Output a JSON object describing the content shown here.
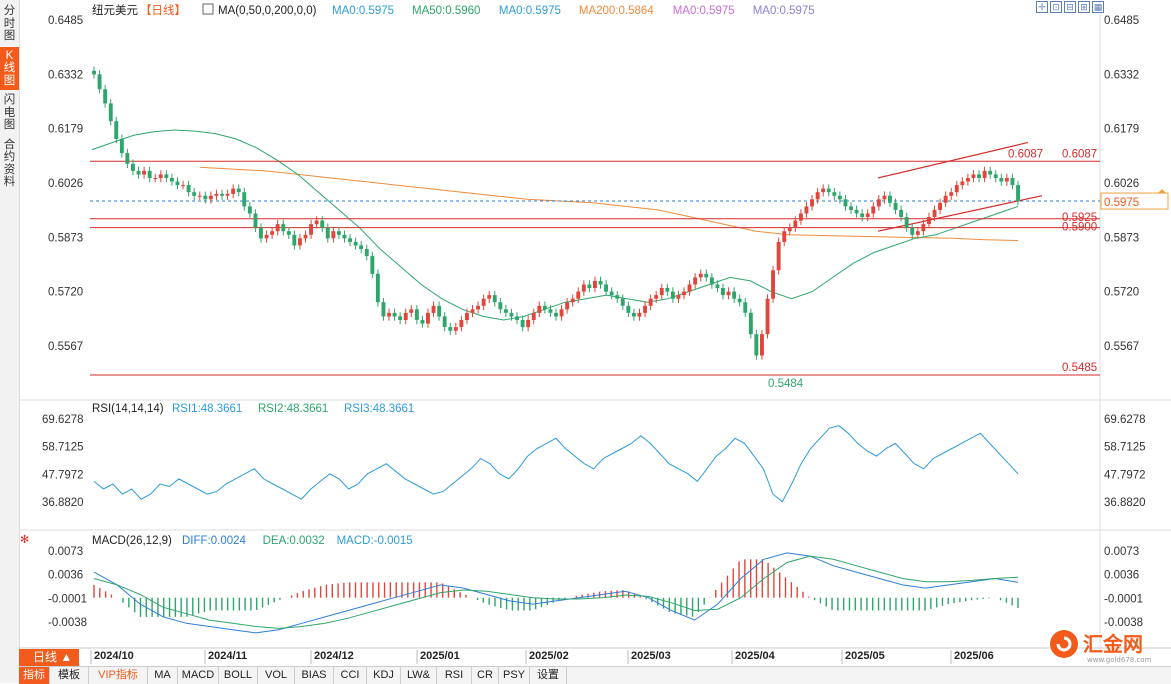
{
  "nav": {
    "items": [
      {
        "label": "分\n时\n图",
        "active": false
      },
      {
        "label": "K\n线\n图",
        "active": true
      },
      {
        "label": "闪\n电\n图",
        "active": false
      },
      {
        "label": "合\n约\n资\n料",
        "active": false
      }
    ]
  },
  "header": {
    "symbol": "纽元美元",
    "period_tag": "【日线】",
    "ma_params": "MA(0,50,0,200,0,0)",
    "ma_values": [
      {
        "label": "MA0:0.5975",
        "color": "#2e9cd9"
      },
      {
        "label": "MA50:0.5960",
        "color": "#2ea66b"
      },
      {
        "label": "MA0:0.5975",
        "color": "#2e9cd9"
      },
      {
        "label": "MA200:0.5864",
        "color": "#ef8c3c"
      },
      {
        "label": "MA0:0.5975",
        "color": "#c86fd6"
      },
      {
        "label": "MA0:0.5975",
        "color": "#8f7fd6"
      }
    ]
  },
  "price_panel": {
    "ticks": [
      "0.6485",
      "0.6332",
      "0.6179",
      "0.6026",
      "0.5873",
      "0.5720",
      "0.5567"
    ],
    "range": [
      0.5485,
      0.6485
    ],
    "current_price": "0.5975",
    "levels": [
      {
        "label": "0.6087",
        "value": 0.6087
      },
      {
        "label": "0.5925",
        "value": 0.5925
      },
      {
        "label": "0.5900",
        "value": 0.59
      },
      {
        "label": "0.5485",
        "value": 0.5485
      }
    ],
    "high_annotation": "0.6087",
    "low_annotation": "0.5484"
  },
  "rsi": {
    "title": "RSI(14,14,14)",
    "values": [
      {
        "label": "RSI1:48.3661",
        "color": "#2e9cd9"
      },
      {
        "label": "RSI2:48.3661",
        "color": "#2ea66b"
      },
      {
        "label": "RSI3:48.3661",
        "color": "#2e9cd9"
      }
    ],
    "ticks": [
      "69.6278",
      "58.7125",
      "47.7972",
      "36.8820"
    ]
  },
  "macd": {
    "title": "MACD(26,12,9)",
    "values": [
      {
        "label": "DIFF:0.0024",
        "color": "#2e7fd6"
      },
      {
        "label": "DEA:0.0032",
        "color": "#2ea66b"
      },
      {
        "label": "MACD:-0.0015",
        "color": "#2e9cd9"
      }
    ],
    "ticks": [
      "0.0073",
      "0.0036",
      "-0.0001",
      "-0.0038"
    ]
  },
  "x_axis": {
    "labels": [
      "2024/10",
      "2024/11",
      "2024/12",
      "2025/01",
      "2025/02",
      "2025/03",
      "2025/04",
      "2025/05",
      "2025/06"
    ]
  },
  "period_button": "日线 ▲",
  "bottom_tabs": [
    {
      "label": "指标",
      "style": "active"
    },
    {
      "label": "模板",
      "style": ""
    },
    {
      "label": "VIP指标",
      "style": "vip"
    },
    {
      "label": "MA",
      "style": ""
    },
    {
      "label": "MACD",
      "style": ""
    },
    {
      "label": "BOLL",
      "style": ""
    },
    {
      "label": "VOL",
      "style": ""
    },
    {
      "label": "BIAS",
      "style": ""
    },
    {
      "label": "CCI",
      "style": ""
    },
    {
      "label": "KDJ",
      "style": ""
    },
    {
      "label": "LW&",
      "style": ""
    },
    {
      "label": "RSI",
      "style": ""
    },
    {
      "label": "CR",
      "style": ""
    },
    {
      "label": "PSY",
      "style": ""
    },
    {
      "label": "设置",
      "style": ""
    }
  ],
  "watermark": {
    "brand": "汇金网",
    "url": "www.gold678.com"
  },
  "chart_data": {
    "type": "candlestick",
    "candles_approx_close": [
      0.6332,
      0.629,
      0.625,
      0.62,
      0.615,
      0.611,
      0.608,
      0.606,
      0.605,
      0.606,
      0.604,
      0.604,
      0.605,
      0.604,
      0.603,
      0.602,
      0.602,
      0.6,
      0.599,
      0.599,
      0.598,
      0.599,
      0.5995,
      0.599,
      0.5995,
      0.601,
      0.6,
      0.596,
      0.594,
      0.59,
      0.587,
      0.588,
      0.589,
      0.591,
      0.589,
      0.588,
      0.585,
      0.587,
      0.588,
      0.591,
      0.592,
      0.59,
      0.587,
      0.589,
      0.588,
      0.587,
      0.586,
      0.585,
      0.584,
      0.582,
      0.577,
      0.569,
      0.565,
      0.566,
      0.565,
      0.564,
      0.566,
      0.567,
      0.564,
      0.563,
      0.566,
      0.568,
      0.565,
      0.562,
      0.561,
      0.562,
      0.564,
      0.566,
      0.567,
      0.568,
      0.57,
      0.571,
      0.569,
      0.567,
      0.566,
      0.565,
      0.564,
      0.562,
      0.564,
      0.566,
      0.568,
      0.567,
      0.566,
      0.565,
      0.567,
      0.569,
      0.57,
      0.572,
      0.574,
      0.573,
      0.575,
      0.574,
      0.572,
      0.571,
      0.57,
      0.568,
      0.566,
      0.565,
      0.566,
      0.568,
      0.57,
      0.571,
      0.573,
      0.572,
      0.57,
      0.571,
      0.572,
      0.574,
      0.576,
      0.577,
      0.576,
      0.574,
      0.573,
      0.571,
      0.572,
      0.57,
      0.569,
      0.566,
      0.56,
      0.554,
      0.56,
      0.57,
      0.578,
      0.586,
      0.589,
      0.59,
      0.592,
      0.594,
      0.596,
      0.598,
      0.6,
      0.601,
      0.6,
      0.599,
      0.598,
      0.596,
      0.595,
      0.594,
      0.593,
      0.594,
      0.596,
      0.598,
      0.599,
      0.597,
      0.595,
      0.593,
      0.59,
      0.588,
      0.589,
      0.591,
      0.593,
      0.595,
      0.597,
      0.599,
      0.6,
      0.602,
      0.603,
      0.604,
      0.605,
      0.604,
      0.606,
      0.605,
      0.604,
      0.603,
      0.604,
      0.602,
      0.5975
    ],
    "ma50_approx": [
      0.612,
      0.614,
      0.616,
      0.617,
      0.6175,
      0.6172,
      0.6165,
      0.615,
      0.6125,
      0.609,
      0.605,
      0.6,
      0.595,
      0.59,
      0.584,
      0.579,
      0.574,
      0.57,
      0.567,
      0.565,
      0.564,
      0.565,
      0.567,
      0.569,
      0.57,
      0.571,
      0.57,
      0.569,
      0.57,
      0.572,
      0.574,
      0.576,
      0.575,
      0.572,
      0.57,
      0.572,
      0.576,
      0.58,
      0.583,
      0.585,
      0.587,
      0.588,
      0.59,
      0.592,
      0.594,
      0.596
    ],
    "ma200_approx": [
      0.607,
      0.6065,
      0.606,
      0.605,
      0.604,
      0.603,
      0.602,
      0.601,
      0.6,
      0.599,
      0.598,
      0.5975,
      0.597,
      0.596,
      0.595,
      0.593,
      0.591,
      0.589,
      0.588,
      0.5878,
      0.5876,
      0.5874,
      0.5872,
      0.587,
      0.5866,
      0.5864
    ],
    "horizontal_levels": [
      0.6087,
      0.5925,
      0.59,
      0.5485
    ],
    "channel": {
      "upper": [
        [
          0.604,
          0.614
        ]
      ],
      "lower": [
        [
          0.589,
          0.599
        ]
      ]
    },
    "rsi_approx": [
      45,
      42,
      44,
      40,
      42,
      38,
      40,
      44,
      43,
      46,
      44,
      42,
      40,
      41,
      44,
      46,
      48,
      50,
      46,
      44,
      42,
      40,
      38,
      42,
      45,
      48,
      46,
      42,
      44,
      48,
      50,
      52,
      49,
      46,
      44,
      42,
      40,
      41,
      44,
      47,
      50,
      54,
      52,
      48,
      46,
      50,
      55,
      58,
      60,
      62,
      58,
      55,
      52,
      50,
      54,
      56,
      58,
      60,
      63,
      60,
      56,
      52,
      50,
      48,
      45,
      50,
      55,
      58,
      62,
      60,
      55,
      50,
      40,
      37,
      44,
      52,
      58,
      62,
      66,
      67,
      64,
      60,
      57,
      55,
      58,
      60,
      56,
      52,
      50,
      54,
      56,
      58,
      60,
      62,
      64,
      60,
      56,
      52,
      48
    ],
    "macd": {
      "diff_approx": [
        0.004,
        0.002,
        -0.001,
        -0.003,
        -0.004,
        -0.0045,
        -0.005,
        -0.0055,
        -0.005,
        -0.004,
        -0.003,
        -0.002,
        -0.001,
        0.0,
        0.001,
        0.002,
        0.0015,
        0.0005,
        -0.0005,
        -0.001,
        -0.0005,
        0.0,
        0.0005,
        0.001,
        0.0,
        -0.002,
        -0.0035,
        -0.001,
        0.003,
        0.006,
        0.007,
        0.0065,
        0.005,
        0.004,
        0.003,
        0.002,
        0.0015,
        0.002,
        0.0025,
        0.003,
        0.0024
      ],
      "dea_approx": [
        0.003,
        0.002,
        0.0005,
        -0.0015,
        -0.0025,
        -0.0035,
        -0.004,
        -0.0045,
        -0.0048,
        -0.0045,
        -0.004,
        -0.0032,
        -0.0022,
        -0.0012,
        -0.0002,
        0.0008,
        0.0012,
        0.001,
        0.0005,
        0.0,
        -0.0002,
        -0.0002,
        0.0,
        0.0004,
        0.0002,
        -0.0008,
        -0.002,
        -0.0018,
        0.0,
        0.003,
        0.0055,
        0.0065,
        0.006,
        0.005,
        0.004,
        0.003,
        0.0025,
        0.0025,
        0.0027,
        0.003,
        0.0032
      ]
    }
  }
}
